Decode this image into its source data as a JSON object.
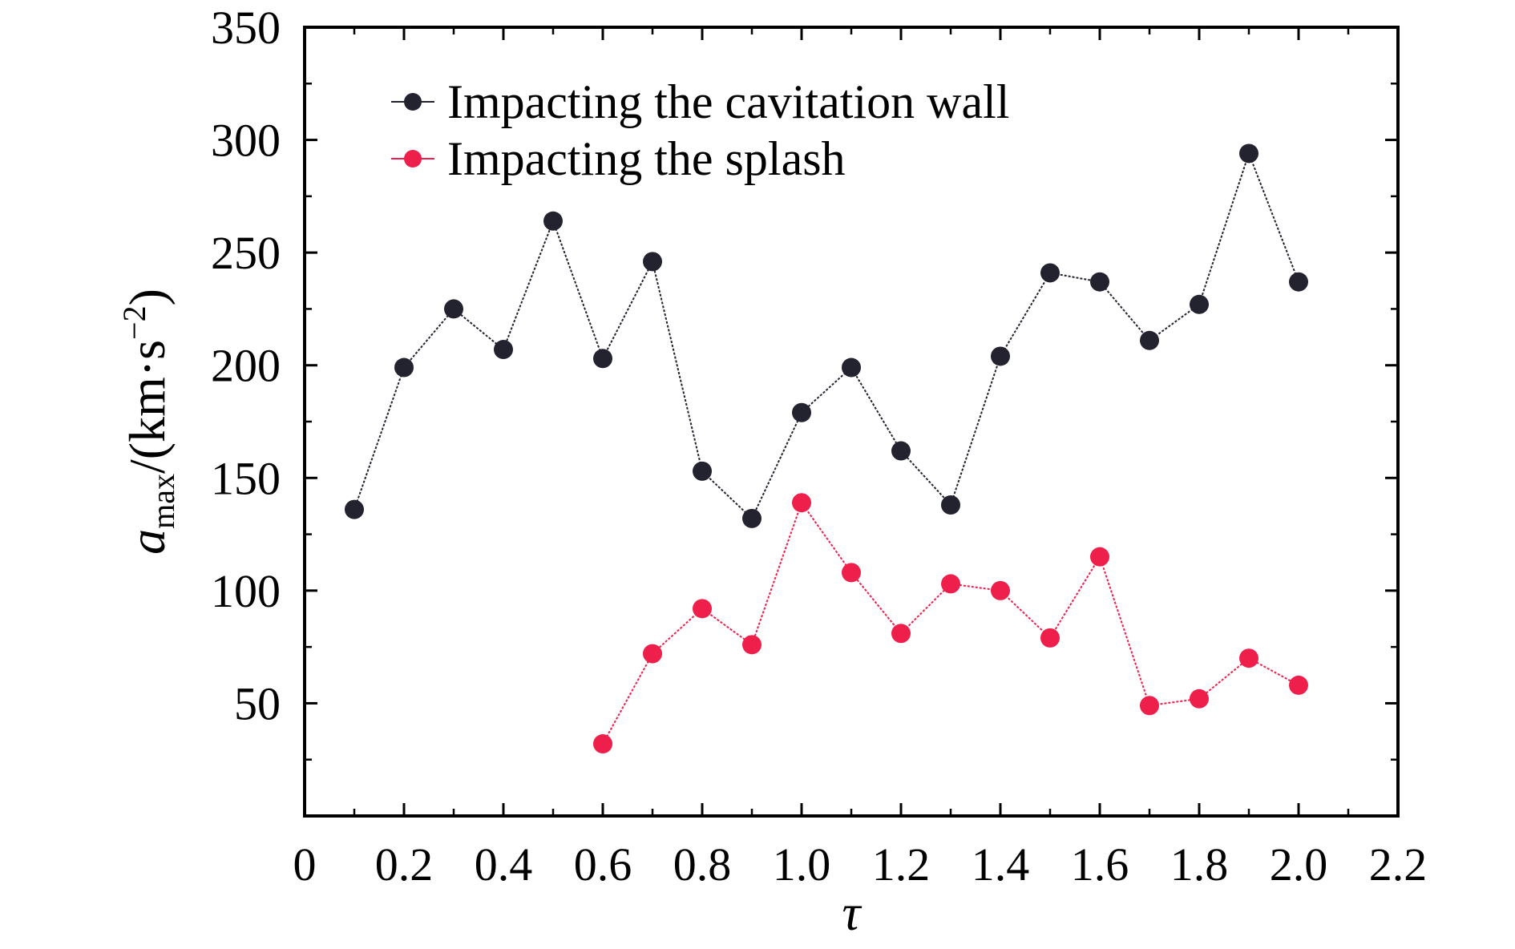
{
  "chart_data": {
    "type": "line",
    "title": "",
    "xlabel": "τ",
    "ylabel": {
      "symbol": "a",
      "subscript": "max",
      "unit_prefix": "/(km·s",
      "unit_exponent": "−2",
      "unit_suffix": ")"
    },
    "xlim": [
      0,
      2.2
    ],
    "ylim": [
      0,
      350
    ],
    "x_tick_labels": [
      "0",
      "0.2",
      "0.4",
      "0.6",
      "0.8",
      "1.0",
      "1.2",
      "1.4",
      "1.6",
      "1.8",
      "2.0",
      "2.2"
    ],
    "x_ticks": [
      0,
      0.2,
      0.4,
      0.6,
      0.8,
      1.0,
      1.2,
      1.4,
      1.6,
      1.8,
      2.0,
      2.2
    ],
    "y_tick_labels": [
      "50",
      "100",
      "150",
      "200",
      "250",
      "300",
      "350"
    ],
    "y_ticks": [
      50,
      100,
      150,
      200,
      250,
      300,
      350
    ],
    "grid": false,
    "legend_position": "top-left",
    "series": [
      {
        "name": "Impacting the cavitation wall",
        "color": "#23222f",
        "x": [
          0.1,
          0.2,
          0.3,
          0.4,
          0.5,
          0.6,
          0.7,
          0.8,
          0.9,
          1.0,
          1.1,
          1.2,
          1.3,
          1.4,
          1.5,
          1.6,
          1.7,
          1.8,
          1.9,
          2.0
        ],
        "values": [
          136,
          199,
          225,
          207,
          264,
          203,
          246,
          153,
          132,
          179,
          199,
          162,
          138,
          204,
          241,
          237,
          211,
          227,
          294,
          237
        ]
      },
      {
        "name": "Impacting the splash",
        "color": "#ef1f4b",
        "x": [
          0.6,
          0.7,
          0.8,
          0.9,
          1.0,
          1.1,
          1.2,
          1.3,
          1.4,
          1.5,
          1.6,
          1.7,
          1.8,
          1.9,
          2.0
        ],
        "values": [
          32,
          72,
          92,
          76,
          139,
          108,
          81,
          103,
          100,
          79,
          115,
          49,
          52,
          70,
          58
        ]
      }
    ]
  }
}
